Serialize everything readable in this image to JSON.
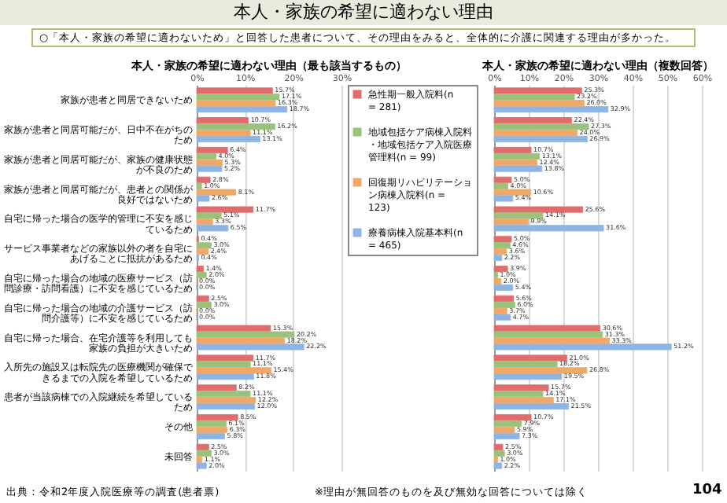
{
  "chart_data": [
    {
      "type": "other",
      "title": "本人・家族の希望に適わない理由",
      "annotations": [
        "○「本人・家族の希望に適わないため」と回答した患者について、その理由をみると、全体的に介護に関連する理由が多かった。",
        "出典：令和2年度入院医療等の調査(患者票)",
        "※理由が無回答のものを及び無効な回答については除く",
        "104"
      ]
    },
    {
      "type": "bar",
      "orientation": "horizontal",
      "title": "本人・家族の希望に適わない理由（最も該当するもの）",
      "categories": [
        "家族が患者と同居できないため",
        "家族が患者と同居可能だが、日中不在がちのため",
        "家族が患者と同居可能だが、家族の健康状態が不良のため",
        "家族が患者と同居可能だが、患者との関係が良好ではないため",
        "自宅に帰った場合の医学的管理に不安を感じているため",
        "サービス事業者などの家族以外の者を自宅にあげることに抵抗があるため",
        "自宅に帰った場合の地域の医療サービス（訪問診療・訪問看護）に不安を感じているため",
        "自宅に帰った場合の地域の介護サービス（訪問介護等）に不安を感じているため",
        "自宅に帰った場合、在宅介護等を利用しても家族の負担が大きいため",
        "入所先の施設又は転院先の医療機関が確保できるまでの入院を希望しているため",
        "患者が当該病棟での入院継続を希望しているため",
        "その他",
        "未回答"
      ],
      "series": [
        {
          "name": "急性期一般入院料(n = 281)",
          "color": "#e06c6c",
          "values": [
            15.7,
            10.7,
            6.4,
            2.8,
            11.7,
            0.4,
            1.4,
            2.5,
            15.3,
            11.7,
            8.2,
            8.5,
            2.5
          ],
          "value_labels": [
            "15.7%",
            "10.7%",
            "6.4%",
            "2.8%",
            "11.7%",
            "0.4%",
            "1.4%",
            "2.5%",
            "15.3%",
            "11.7%",
            "8.2%",
            "8.5%",
            "2.5%"
          ]
        },
        {
          "name": "地域包括ケア病棟入院料・地域包括ケア入院医療管理料(n = 99)",
          "color": "#9bc27a",
          "values": [
            17.1,
            16.2,
            4.0,
            1.0,
            5.1,
            3.0,
            2.0,
            3.0,
            20.2,
            11.1,
            11.1,
            6.1,
            3.0
          ],
          "value_labels": [
            "17.1%",
            "16.2%",
            "4.0%",
            "1.0%",
            "5.1%",
            "3.0%",
            "2.0%",
            "3.0%",
            "20.2%",
            "11.1%",
            "11.1%",
            "6.1%",
            "3.0%"
          ]
        },
        {
          "name": "回復期リハビリテーション病棟入院料(n = 123)",
          "color": "#f0a868",
          "values": [
            16.3,
            11.1,
            5.3,
            8.1,
            3.3,
            2.4,
            0.0,
            0.0,
            18.2,
            15.4,
            12.2,
            6.3,
            1.1
          ],
          "value_labels": [
            "16.3%",
            "11.1%",
            "5.3%",
            "8.1%",
            "3.3%",
            "2.4%",
            "0.0%",
            "0.0%",
            "18.2%",
            "15.4%",
            "12.2%",
            "6.3%",
            "1.1%"
          ]
        },
        {
          "name": "療養病棟入院基本料(n = 465)",
          "color": "#8db4e2",
          "values": [
            18.7,
            13.1,
            5.2,
            2.6,
            6.5,
            0.4,
            0.0,
            0.0,
            22.2,
            11.8,
            12.0,
            5.8,
            2.0
          ],
          "value_labels": [
            "18.7%",
            "13.1%",
            "5.2%",
            "2.6%",
            "6.5%",
            "0.4%",
            "0.0%",
            "0.0%",
            "22.2%",
            "11.8%",
            "12.0%",
            "5.8%",
            "2.0%"
          ]
        }
      ],
      "xlim": [
        0,
        30
      ],
      "xticks": [
        {
          "value": 0,
          "label": "0%"
        },
        {
          "value": 10,
          "label": "10%"
        },
        {
          "value": 20,
          "label": "20%"
        },
        {
          "value": 30,
          "label": "30%"
        }
      ],
      "grid": "x",
      "legend": "right"
    },
    {
      "type": "bar",
      "orientation": "horizontal",
      "title": "本人・家族の希望に適わない理由（複数回答）",
      "categories": [
        "家族が患者と同居できないため",
        "家族が患者と同居可能だが、日中不在がちのため",
        "家族が患者と同居可能だが、家族の健康状態が不良のため",
        "家族が患者と同居可能だが、患者との関係が良好ではないため",
        "自宅に帰った場合の医学的管理に不安を感じているため",
        "サービス事業者などの家族以外の者を自宅にあげることに抵抗があるため",
        "自宅に帰った場合の地域の医療サービス（訪問診療・訪問看護）に不安を感じているため",
        "自宅に帰った場合の地域の介護サービス（訪問介護等）に不安を感じているため",
        "自宅に帰った場合、在宅介護等を利用しても家族の負担が大きいため",
        "入所先の施設又は転院先の医療機関が確保できるまでの入院を希望しているため",
        "患者が当該病棟での入院継続を希望しているため",
        "その他",
        "未回答"
      ],
      "series": [
        {
          "color": "#e06c6c",
          "values": [
            25.3,
            22.4,
            10.7,
            5.0,
            25.6,
            5.0,
            3.9,
            5.6,
            30.6,
            21.0,
            15.7,
            10.7,
            2.5
          ],
          "value_labels": [
            "25.3%",
            "22.4%",
            "10.7%",
            "5.0%",
            "25.6%",
            "5.0%",
            "3.9%",
            "5.6%",
            "30.6%",
            "21.0%",
            "15.7%",
            "10.7%",
            "2.5%"
          ]
        },
        {
          "color": "#9bc27a",
          "values": [
            23.2,
            27.3,
            13.1,
            4.0,
            14.1,
            4.6,
            1.0,
            6.0,
            31.3,
            18.2,
            14.1,
            7.9,
            3.0
          ],
          "value_labels": [
            "23.2%",
            "27.3%",
            "13.1%",
            "4.0%",
            "14.1%",
            "4.6%",
            "1.0%",
            "6.0%",
            "31.3%",
            "18.2%",
            "14.1%",
            "7.9%",
            "3.0%"
          ]
        },
        {
          "color": "#f0a868",
          "values": [
            26.0,
            24.0,
            12.4,
            10.6,
            9.9,
            3.6,
            2.0,
            3.7,
            33.3,
            26.8,
            17.1,
            5.9,
            1.0
          ],
          "value_labels": [
            "26.0%",
            "24.0%",
            "12.4%",
            "10.6%",
            "9.9%",
            "3.6%",
            "2.0%",
            "3.7%",
            "33.3%",
            "26.8%",
            "17.1%",
            "5.9%",
            "1.0%"
          ]
        },
        {
          "color": "#8db4e2",
          "values": [
            32.9,
            26.9,
            13.8,
            5.4,
            31.6,
            2.2,
            5.4,
            4.7,
            51.2,
            19.5,
            21.5,
            7.3,
            2.2
          ],
          "value_labels": [
            "32.9%",
            "26.9%",
            "13.8%",
            "5.4%",
            "31.6%",
            "2.2%",
            "5.4%",
            "4.7%",
            "51.2%",
            "19.5%",
            "21.5%",
            "7.3%",
            "2.2%"
          ]
        }
      ],
      "xlim": [
        0,
        60
      ],
      "xticks": [
        {
          "value": 0,
          "label": "0%"
        },
        {
          "value": 10,
          "label": "10%"
        },
        {
          "value": 20,
          "label": "20%"
        },
        {
          "value": 30,
          "label": "30%"
        },
        {
          "value": 40,
          "label": "40%"
        },
        {
          "value": 50,
          "label": "50%"
        },
        {
          "value": 60,
          "label": "60%"
        }
      ],
      "grid": "x",
      "tick_labels": "x"
    }
  ]
}
